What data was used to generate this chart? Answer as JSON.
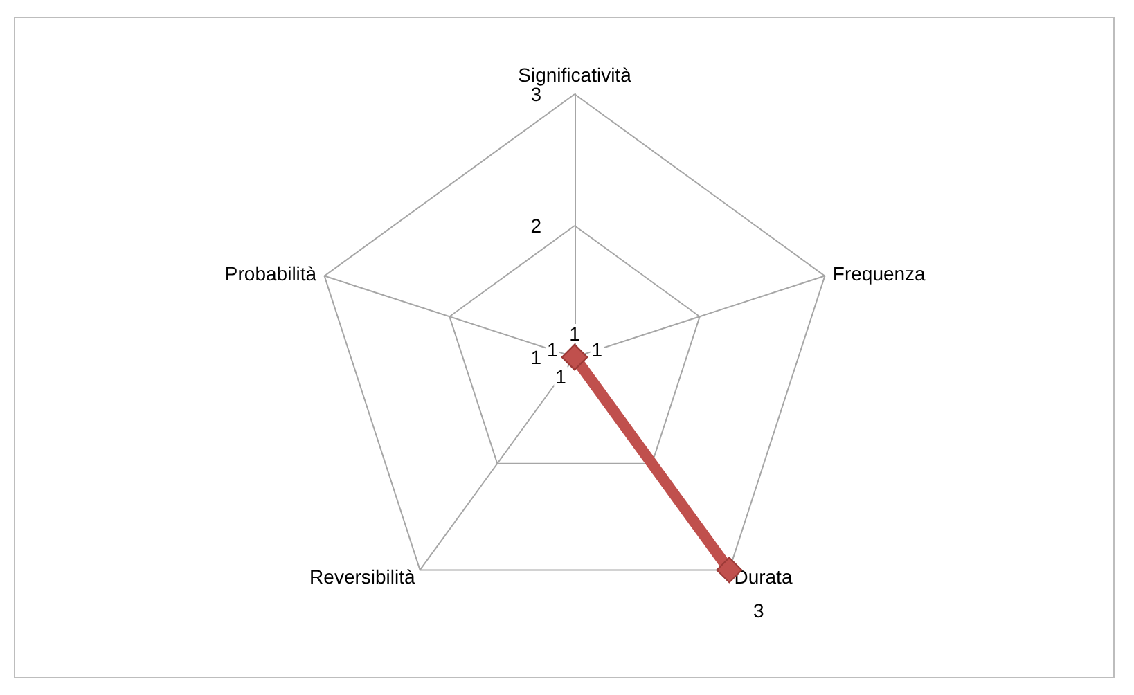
{
  "chart_data": {
    "type": "radar",
    "categories": [
      "Significatività",
      "Frequenza",
      "Durata",
      "Reversibilità",
      "Probabilità"
    ],
    "series": [
      {
        "color": "#c0504d",
        "values": [
          1,
          1,
          3,
          1,
          1
        ]
      }
    ],
    "ylim": [
      1,
      3
    ],
    "yticks": [
      1,
      2,
      3
    ],
    "grid": true,
    "marker": "diamond",
    "data_labels": true
  }
}
